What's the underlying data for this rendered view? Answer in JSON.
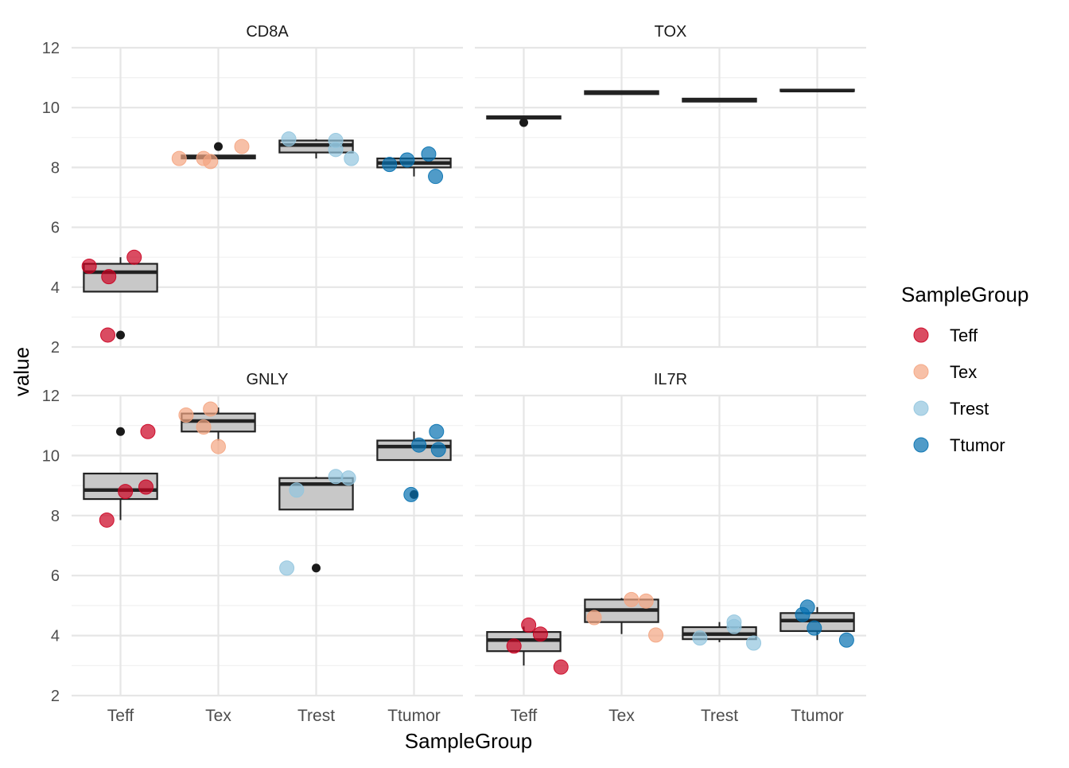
{
  "chart_data": {
    "type": "boxplot",
    "xlabel": "SampleGroup",
    "ylabel": "value",
    "ylim": [
      2,
      12
    ],
    "yticks": [
      2,
      4,
      6,
      8,
      10,
      12
    ],
    "categories": [
      "Teff",
      "Tex",
      "Trest",
      "Ttumor"
    ],
    "legend": {
      "title": "SampleGroup",
      "position": "right",
      "entries": [
        {
          "label": "Teff",
          "color": "#ca0020"
        },
        {
          "label": "Tex",
          "color": "#f4a582"
        },
        {
          "label": "Trest",
          "color": "#92c5de"
        },
        {
          "label": "Ttumor",
          "color": "#0571b0"
        }
      ]
    },
    "colors": {
      "Teff": "#ca0020",
      "Tex": "#f4a582",
      "Trest": "#92c5de",
      "Ttumor": "#0571b0",
      "box_fill": "#c8c8c8",
      "box_stroke": "#222222",
      "outlier": "#1a1a1a",
      "grid": "#e6e6e6"
    },
    "panels": [
      {
        "title": "CD8A",
        "boxes": [
          {
            "category": "Teff",
            "q1": 3.85,
            "median": 4.5,
            "q3": 4.78,
            "whisker_low": 3.85,
            "whisker_high": 5.0,
            "outliers": [
              2.4
            ]
          },
          {
            "category": "Tex",
            "q1": 8.3,
            "median": 8.35,
            "q3": 8.4,
            "whisker_low": 8.3,
            "whisker_high": 8.4,
            "outliers": [
              8.7
            ]
          },
          {
            "category": "Trest",
            "q1": 8.5,
            "median": 8.75,
            "q3": 8.9,
            "whisker_low": 8.3,
            "whisker_high": 8.95,
            "outliers": []
          },
          {
            "category": "Ttumor",
            "q1": 8.0,
            "median": 8.15,
            "q3": 8.3,
            "whisker_low": 7.7,
            "whisker_high": 8.3,
            "outliers": []
          }
        ],
        "points": [
          {
            "category": "Teff",
            "values": [
              4.7,
              4.35,
              5.0,
              2.4
            ],
            "jitter": [
              -0.32,
              -0.12,
              0.14,
              -0.13
            ]
          },
          {
            "category": "Tex",
            "values": [
              8.3,
              8.3,
              8.2,
              8.7
            ],
            "jitter": [
              -0.4,
              -0.15,
              -0.08,
              0.24
            ]
          },
          {
            "category": "Trest",
            "values": [
              8.95,
              8.9,
              8.6,
              8.3
            ],
            "jitter": [
              -0.28,
              0.2,
              0.2,
              0.36
            ]
          },
          {
            "category": "Ttumor",
            "values": [
              8.1,
              8.25,
              8.45,
              7.7
            ],
            "jitter": [
              -0.25,
              -0.07,
              0.15,
              0.22
            ]
          }
        ]
      },
      {
        "title": "TOX",
        "boxes": [
          {
            "category": "Teff",
            "q1": 9.63,
            "median": 9.67,
            "q3": 9.71,
            "whisker_low": 9.63,
            "whisker_high": 9.71,
            "outliers": [
              9.5
            ]
          },
          {
            "category": "Tex",
            "q1": 10.45,
            "median": 10.5,
            "q3": 10.55,
            "whisker_low": 10.45,
            "whisker_high": 10.55,
            "outliers": []
          },
          {
            "category": "Trest",
            "q1": 10.2,
            "median": 10.25,
            "q3": 10.3,
            "whisker_low": 10.2,
            "whisker_high": 10.3,
            "outliers": []
          },
          {
            "category": "Ttumor",
            "q1": 10.55,
            "median": 10.57,
            "q3": 10.6,
            "whisker_low": 10.55,
            "whisker_high": 10.6,
            "outliers": []
          }
        ]
      },
      {
        "title": "GNLY",
        "boxes": [
          {
            "category": "Teff",
            "q1": 8.55,
            "median": 8.85,
            "q3": 9.4,
            "whisker_low": 7.85,
            "whisker_high": 9.4,
            "outliers": [
              10.8
            ]
          },
          {
            "category": "Tex",
            "q1": 10.8,
            "median": 11.15,
            "q3": 11.4,
            "whisker_low": 10.5,
            "whisker_high": 11.6,
            "outliers": []
          },
          {
            "category": "Trest",
            "q1": 8.2,
            "median": 9.05,
            "q3": 9.25,
            "whisker_low": 8.2,
            "whisker_high": 9.3,
            "outliers": [
              6.25
            ]
          },
          {
            "category": "Ttumor",
            "q1": 9.85,
            "median": 10.3,
            "q3": 10.5,
            "whisker_low": 9.85,
            "whisker_high": 10.8,
            "outliers": [
              8.7
            ]
          }
        ],
        "points": [
          {
            "category": "Teff",
            "values": [
              7.85,
              8.8,
              8.95,
              10.8
            ],
            "jitter": [
              -0.14,
              0.05,
              0.26,
              0.28
            ]
          },
          {
            "category": "Tex",
            "values": [
              11.35,
              10.95,
              11.55,
              10.3
            ],
            "jitter": [
              -0.33,
              -0.15,
              -0.08,
              0.0
            ]
          },
          {
            "category": "Trest",
            "values": [
              6.25,
              8.85,
              9.3,
              9.25
            ],
            "jitter": [
              -0.3,
              -0.2,
              0.2,
              0.33
            ]
          },
          {
            "category": "Ttumor",
            "values": [
              8.7,
              10.35,
              10.2,
              10.8
            ],
            "jitter": [
              -0.03,
              0.05,
              0.25,
              0.23
            ]
          }
        ]
      },
      {
        "title": "IL7R",
        "boxes": [
          {
            "category": "Teff",
            "q1": 3.48,
            "median": 3.85,
            "q3": 4.12,
            "whisker_low": 3.0,
            "whisker_high": 4.3,
            "outliers": []
          },
          {
            "category": "Tex",
            "q1": 4.45,
            "median": 4.85,
            "q3": 5.2,
            "whisker_low": 4.05,
            "whisker_high": 5.25,
            "outliers": []
          },
          {
            "category": "Trest",
            "q1": 3.88,
            "median": 4.05,
            "q3": 4.28,
            "whisker_low": 3.78,
            "whisker_high": 4.45,
            "outliers": []
          },
          {
            "category": "Ttumor",
            "q1": 4.15,
            "median": 4.5,
            "q3": 4.75,
            "whisker_low": 3.85,
            "whisker_high": 4.95,
            "outliers": []
          }
        ],
        "points": [
          {
            "category": "Teff",
            "values": [
              3.65,
              4.35,
              4.05,
              2.95
            ],
            "jitter": [
              -0.1,
              0.05,
              0.17,
              0.38
            ]
          },
          {
            "category": "Tex",
            "values": [
              4.6,
              5.2,
              5.15,
              4.02
            ],
            "jitter": [
              -0.28,
              0.1,
              0.25,
              0.35
            ]
          },
          {
            "category": "Trest",
            "values": [
              3.92,
              4.3,
              4.45,
              3.75
            ],
            "jitter": [
              -0.2,
              0.15,
              0.15,
              0.35
            ]
          },
          {
            "category": "Ttumor",
            "values": [
              4.7,
              4.95,
              4.25,
              3.85
            ],
            "jitter": [
              -0.15,
              -0.1,
              -0.03,
              0.3
            ]
          }
        ]
      }
    ]
  }
}
